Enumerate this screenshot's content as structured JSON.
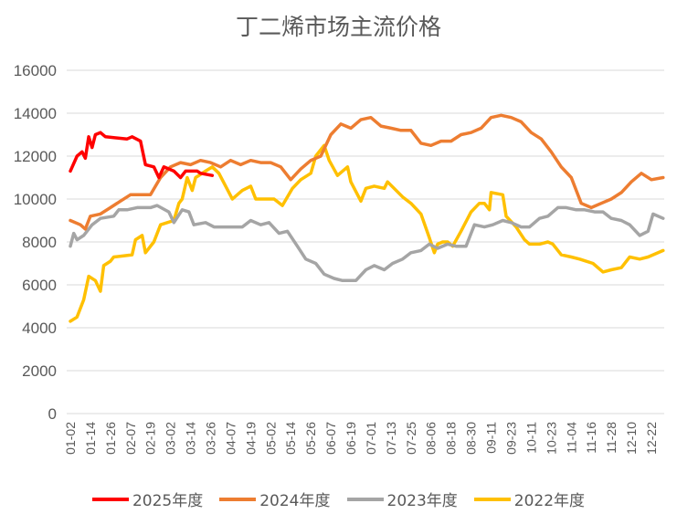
{
  "chart_data": {
    "type": "line",
    "title": "丁二烯市场主流价格",
    "xlabel": "",
    "ylabel": "",
    "x_unit": "day of year",
    "xlim": [
      2,
      357
    ],
    "ylim": [
      0,
      16000
    ],
    "yticks": [
      0,
      2000,
      4000,
      6000,
      8000,
      10000,
      12000,
      14000,
      16000
    ],
    "xtick_labels": [
      "01-02",
      "01-14",
      "01-26",
      "02-07",
      "02-19",
      "03-02",
      "03-14",
      "03-26",
      "04-07",
      "04-19",
      "05-02",
      "05-14",
      "05-26",
      "06-07",
      "06-19",
      "07-01",
      "07-13",
      "07-25",
      "08-06",
      "08-18",
      "08-30",
      "09-11",
      "09-23",
      "10-11",
      "10-23",
      "11-04",
      "11-16",
      "11-28",
      "12-10",
      "12-22"
    ],
    "grid": true,
    "legend_position": "bottom",
    "series": [
      {
        "name": "2025年度",
        "color": "#ff0000",
        "points": [
          [
            2,
            11300
          ],
          [
            6,
            12000
          ],
          [
            9,
            12200
          ],
          [
            11,
            11900
          ],
          [
            13,
            12900
          ],
          [
            15,
            12400
          ],
          [
            17,
            13000
          ],
          [
            20,
            13100
          ],
          [
            23,
            12900
          ],
          [
            36,
            12800
          ],
          [
            39,
            12900
          ],
          [
            44,
            12700
          ],
          [
            47,
            11600
          ],
          [
            52,
            11500
          ],
          [
            55,
            11000
          ],
          [
            58,
            11500
          ],
          [
            64,
            11300
          ],
          [
            68,
            11000
          ],
          [
            71,
            11300
          ],
          [
            78,
            11300
          ],
          [
            80,
            11200
          ],
          [
            87,
            11100
          ]
        ]
      },
      {
        "name": "2024年度",
        "color": "#ed7d31",
        "points": [
          [
            2,
            9000
          ],
          [
            8,
            8800
          ],
          [
            11,
            8600
          ],
          [
            14,
            9200
          ],
          [
            20,
            9300
          ],
          [
            26,
            9600
          ],
          [
            32,
            9900
          ],
          [
            38,
            10200
          ],
          [
            44,
            10200
          ],
          [
            50,
            10200
          ],
          [
            56,
            11000
          ],
          [
            62,
            11500
          ],
          [
            68,
            11700
          ],
          [
            74,
            11600
          ],
          [
            80,
            11800
          ],
          [
            86,
            11700
          ],
          [
            92,
            11500
          ],
          [
            98,
            11800
          ],
          [
            104,
            11600
          ],
          [
            110,
            11800
          ],
          [
            116,
            11700
          ],
          [
            122,
            11700
          ],
          [
            128,
            11500
          ],
          [
            134,
            10900
          ],
          [
            140,
            11400
          ],
          [
            146,
            11800
          ],
          [
            152,
            12000
          ],
          [
            158,
            13000
          ],
          [
            164,
            13500
          ],
          [
            170,
            13300
          ],
          [
            176,
            13700
          ],
          [
            182,
            13800
          ],
          [
            188,
            13400
          ],
          [
            194,
            13300
          ],
          [
            200,
            13200
          ],
          [
            206,
            13200
          ],
          [
            212,
            12600
          ],
          [
            218,
            12500
          ],
          [
            224,
            12700
          ],
          [
            230,
            12700
          ],
          [
            236,
            13000
          ],
          [
            242,
            13100
          ],
          [
            248,
            13300
          ],
          [
            254,
            13800
          ],
          [
            260,
            13900
          ],
          [
            266,
            13800
          ],
          [
            272,
            13600
          ],
          [
            278,
            13100
          ],
          [
            284,
            12800
          ],
          [
            290,
            12200
          ],
          [
            296,
            11500
          ],
          [
            302,
            11000
          ],
          [
            308,
            9800
          ],
          [
            314,
            9600
          ],
          [
            320,
            9800
          ],
          [
            326,
            10000
          ],
          [
            332,
            10300
          ],
          [
            338,
            10800
          ],
          [
            344,
            11200
          ],
          [
            350,
            10900
          ],
          [
            357,
            11000
          ]
        ]
      },
      {
        "name": "2023年度",
        "color": "#a5a5a5",
        "points": [
          [
            2,
            7800
          ],
          [
            4,
            8400
          ],
          [
            6,
            8100
          ],
          [
            10,
            8300
          ],
          [
            15,
            8800
          ],
          [
            20,
            9100
          ],
          [
            28,
            9200
          ],
          [
            31,
            9500
          ],
          [
            36,
            9500
          ],
          [
            42,
            9600
          ],
          [
            45,
            9600
          ],
          [
            50,
            9600
          ],
          [
            54,
            9700
          ],
          [
            61,
            9400
          ],
          [
            64,
            8900
          ],
          [
            69,
            9500
          ],
          [
            73,
            9400
          ],
          [
            76,
            8800
          ],
          [
            83,
            8900
          ],
          [
            88,
            8700
          ],
          [
            94,
            8700
          ],
          [
            99,
            8700
          ],
          [
            105,
            8700
          ],
          [
            110,
            9000
          ],
          [
            116,
            8800
          ],
          [
            121,
            8900
          ],
          [
            127,
            8400
          ],
          [
            132,
            8500
          ],
          [
            138,
            7800
          ],
          [
            143,
            7200
          ],
          [
            149,
            7000
          ],
          [
            154,
            6500
          ],
          [
            160,
            6300
          ],
          [
            165,
            6200
          ],
          [
            173,
            6200
          ],
          [
            179,
            6700
          ],
          [
            184,
            6900
          ],
          [
            190,
            6700
          ],
          [
            195,
            7000
          ],
          [
            201,
            7200
          ],
          [
            206,
            7500
          ],
          [
            212,
            7600
          ],
          [
            217,
            7900
          ],
          [
            222,
            7700
          ],
          [
            228,
            7900
          ],
          [
            233,
            7800
          ],
          [
            239,
            7800
          ],
          [
            244,
            8800
          ],
          [
            250,
            8700
          ],
          [
            255,
            8800
          ],
          [
            261,
            9000
          ],
          [
            266,
            8900
          ],
          [
            272,
            8700
          ],
          [
            277,
            8700
          ],
          [
            283,
            9100
          ],
          [
            288,
            9200
          ],
          [
            294,
            9600
          ],
          [
            299,
            9600
          ],
          [
            305,
            9500
          ],
          [
            310,
            9500
          ],
          [
            316,
            9400
          ],
          [
            321,
            9400
          ],
          [
            326,
            9100
          ],
          [
            332,
            9000
          ],
          [
            337,
            8800
          ],
          [
            343,
            8300
          ],
          [
            348,
            8500
          ],
          [
            351,
            9300
          ],
          [
            357,
            9100
          ]
        ]
      },
      {
        "name": "2022年度",
        "color": "#ffc000",
        "points": [
          [
            2,
            4300
          ],
          [
            6,
            4500
          ],
          [
            10,
            5300
          ],
          [
            13,
            6400
          ],
          [
            17,
            6200
          ],
          [
            20,
            5700
          ],
          [
            22,
            6900
          ],
          [
            26,
            7100
          ],
          [
            28,
            7300
          ],
          [
            39,
            7400
          ],
          [
            41,
            8100
          ],
          [
            45,
            8300
          ],
          [
            47,
            7500
          ],
          [
            52,
            8000
          ],
          [
            56,
            8800
          ],
          [
            64,
            9000
          ],
          [
            67,
            9800
          ],
          [
            69,
            10000
          ],
          [
            72,
            11000
          ],
          [
            75,
            10400
          ],
          [
            77,
            11000
          ],
          [
            83,
            11300
          ],
          [
            87,
            11500
          ],
          [
            91,
            11200
          ],
          [
            99,
            10000
          ],
          [
            105,
            10400
          ],
          [
            110,
            10600
          ],
          [
            113,
            10000
          ],
          [
            119,
            10000
          ],
          [
            124,
            10000
          ],
          [
            129,
            9700
          ],
          [
            135,
            10500
          ],
          [
            140,
            10900
          ],
          [
            146,
            11200
          ],
          [
            149,
            12000
          ],
          [
            154,
            12500
          ],
          [
            157,
            11800
          ],
          [
            162,
            11100
          ],
          [
            168,
            11500
          ],
          [
            170,
            10800
          ],
          [
            176,
            9900
          ],
          [
            179,
            10500
          ],
          [
            184,
            10600
          ],
          [
            190,
            10500
          ],
          [
            192,
            10800
          ],
          [
            201,
            10100
          ],
          [
            206,
            9800
          ],
          [
            212,
            9300
          ],
          [
            217,
            8200
          ],
          [
            220,
            7500
          ],
          [
            222,
            7900
          ],
          [
            225,
            8000
          ],
          [
            228,
            8000
          ],
          [
            231,
            7800
          ],
          [
            236,
            8500
          ],
          [
            242,
            9400
          ],
          [
            247,
            9800
          ],
          [
            250,
            9800
          ],
          [
            253,
            9500
          ],
          [
            254,
            10300
          ],
          [
            261,
            10200
          ],
          [
            263,
            9200
          ],
          [
            269,
            8700
          ],
          [
            274,
            8100
          ],
          [
            277,
            7900
          ],
          [
            283,
            7900
          ],
          [
            288,
            8000
          ],
          [
            291,
            7900
          ],
          [
            296,
            7400
          ],
          [
            302,
            7300
          ],
          [
            307,
            7200
          ],
          [
            315,
            7000
          ],
          [
            321,
            6600
          ],
          [
            326,
            6700
          ],
          [
            332,
            6800
          ],
          [
            337,
            7300
          ],
          [
            343,
            7200
          ],
          [
            348,
            7300
          ],
          [
            351,
            7400
          ],
          [
            357,
            7600
          ]
        ]
      }
    ]
  }
}
